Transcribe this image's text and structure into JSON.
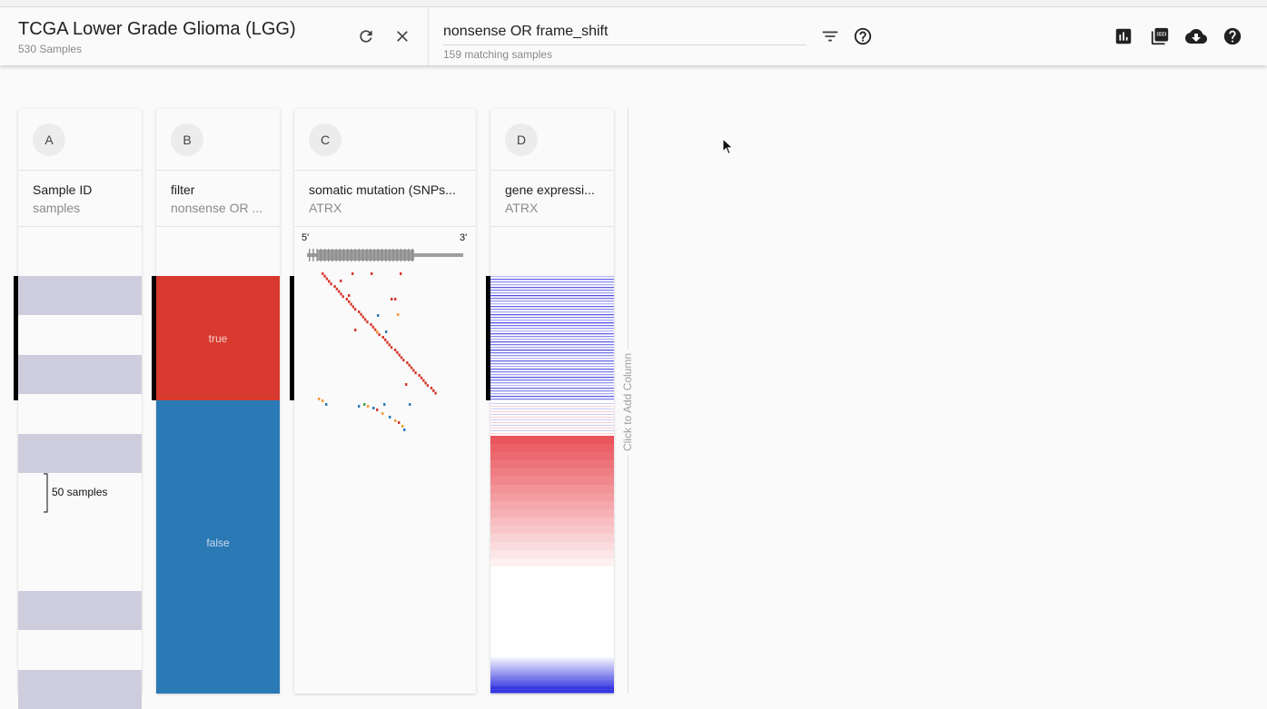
{
  "header": {
    "cohort_title": "TCGA Lower Grade Glioma (LGG)",
    "cohort_subtitle": "530 Samples",
    "refresh_icon": "refresh-icon",
    "close_icon": "close-icon",
    "search_value": "nonsense OR frame_shift",
    "search_subtitle": "159 matching samples",
    "filter_icon": "filter-list-icon",
    "help_circle_icon": "help-outline-icon",
    "chart_icon": "bar-chart-icon",
    "pdf_icon": "pdf-icon",
    "download_icon": "cloud-download-icon",
    "help_icon": "help-icon"
  },
  "columns": [
    {
      "letter": "A",
      "title": "Sample ID",
      "subtitle": "samples",
      "annotation": "50 samples"
    },
    {
      "letter": "B",
      "title": "filter",
      "subtitle": "nonsense OR ...",
      "true_label": "true",
      "false_label": "false"
    },
    {
      "letter": "C",
      "title": "somatic mutation (SNPs...",
      "subtitle": "ATRX",
      "five_prime": "5'",
      "three_prime": "3'"
    },
    {
      "letter": "D",
      "title": "gene expressi...",
      "subtitle": "ATRX"
    }
  ],
  "add_column": {
    "label": "Click to Add Column"
  },
  "colors": {
    "accent_true": "#d8392e",
    "accent_false": "#2b79b5",
    "stripe": "#cdcddd",
    "mutation_red": "#d8392e",
    "mutation_orange": "#f39c38",
    "mutation_blue": "#2b79b5",
    "mutation_green": "#3fa34d",
    "expression_high": "#e8414a",
    "expression_low": "#2f2fe0"
  }
}
